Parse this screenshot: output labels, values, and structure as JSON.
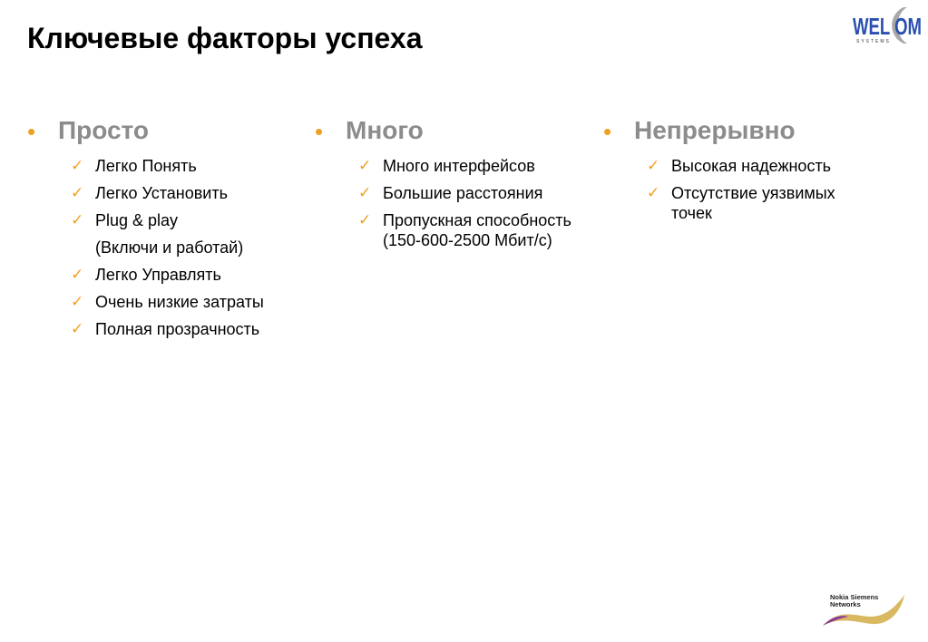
{
  "title": "Ключевые факторы успеха",
  "columns": [
    {
      "heading": "Просто",
      "items": [
        "Легко Понять",
        "Легко Установить",
        "Plug & play",
        "(Включи и работай)",
        "Легко Управлять",
        "Очень низкие затраты",
        "Полная прозрачность"
      ],
      "checks": [
        true,
        true,
        true,
        false,
        true,
        true,
        true
      ]
    },
    {
      "heading": "Много",
      "items": [
        "Много интерфейсов",
        "Большие расстояния",
        "Пропускная способность (150-600-2500 Мбит/с)"
      ],
      "checks": [
        true,
        true,
        true
      ]
    },
    {
      "heading": "Непрерывно",
      "items": [
        "Высокая надежность",
        "Отсутствие уязвимых точек"
      ],
      "checks": [
        true,
        true
      ]
    }
  ],
  "logos": {
    "welcom": "WELCOM SYSTEMS",
    "nsn": "Nokia Siemens Networks"
  },
  "colors": {
    "accent": "#f0a020",
    "heading": "#8c8c8c",
    "logo_blue": "#2a4fb0"
  }
}
